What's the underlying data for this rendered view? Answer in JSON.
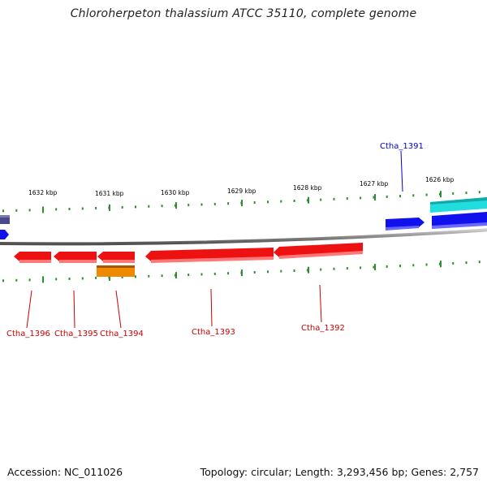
{
  "title": "Chloroherpeton thalassium ATCC 35110, complete genome",
  "footer": {
    "accession": "Accession: NC_011026",
    "summary": "Topology: circular; Length: 3,293,456 bp; Genes: 2,757"
  },
  "colors": {
    "backbone": "#8a8a8a",
    "tick": "#2f8f2f",
    "reverse_gene": "#ee1111",
    "reverse_label": "#cc0000",
    "forward_gene": "#1111ee",
    "forward_label": "#0000cc",
    "cyan_gene": "#22dddd",
    "orange_gene": "#ee8a00",
    "slate_gene": "#4a4a8a"
  },
  "scale": {
    "unit": "kbp",
    "major_ticks": [
      {
        "label": "1632 kbp"
      },
      {
        "label": "1631 kbp"
      },
      {
        "label": "1630 kbp"
      },
      {
        "label": "1629 kbp"
      },
      {
        "label": "1628 kbp"
      },
      {
        "label": "1627 kbp"
      },
      {
        "label": "1626 kbp"
      }
    ]
  },
  "gene_labels": {
    "ctha_1391": "Ctha_1391",
    "ctha_1392": "Ctha_1392",
    "ctha_1393": "Ctha_1393",
    "ctha_1394": "Ctha_1394",
    "ctha_1395": "Ctha_1395",
    "ctha_1396": "Ctha_1396"
  }
}
